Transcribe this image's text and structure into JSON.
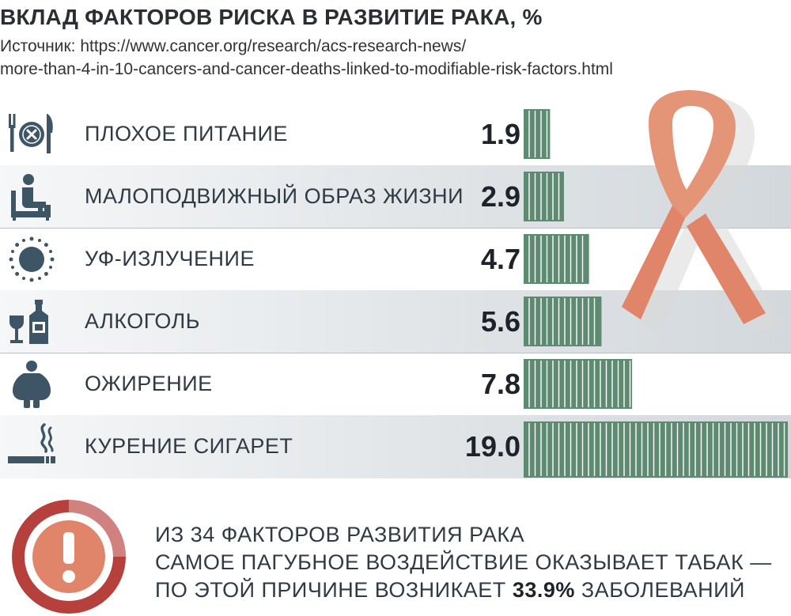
{
  "title": "ВКЛАД ФАКТОРОВ РИСКА В РАЗВИТИЕ РАКА, %",
  "source": {
    "line1": "Источник: https://www.cancer.org/research/acs-research-news/",
    "line2": "more-than-4-in-10-cancers-and-cancer-deaths-linked-to-modifiable-risk-factors.html"
  },
  "chart_data": {
    "type": "bar",
    "orientation": "horizontal",
    "categories": [
      "ПЛОХОЕ ПИТАНИЕ",
      "МАЛОПОДВИЖНЫЙ ОБРАЗ ЖИЗНИ",
      "УФ-ИЗЛУЧЕНИЕ",
      "АЛКОГОЛЬ",
      "ОЖИРЕНИЕ",
      "КУРЕНИЕ СИГАРЕТ"
    ],
    "values": [
      1.9,
      2.9,
      4.7,
      5.6,
      7.8,
      19.0
    ],
    "value_labels": [
      "1.9",
      "2.9",
      "4.7",
      "5.6",
      "7.8",
      "19.0"
    ],
    "icons": [
      "plate-icon",
      "armchair-person-icon",
      "sun-icon",
      "bottle-glass-icon",
      "obese-person-icon",
      "cigarette-icon"
    ],
    "bar_color": "#5e8a72",
    "grid": false
  },
  "note": {
    "line1": "ИЗ 34 ФАКТОРОВ РАЗВИТИЯ РАКА",
    "line2": "САМОЕ ПАГУБНОЕ ВОЗДЕЙСТВИЕ ОКАЗЫВАЕТ ТАБАК —",
    "line3_pre": "ПО ЭТОЙ ПРИЧИНЕ ВОЗНИКАЕТ ",
    "line3_bold": "33.9%",
    "line3_post": " ЗАБОЛЕВАНИЙ",
    "icon": "exclamation-icon"
  },
  "colors": {
    "accent_red": "#b6403b",
    "ribbon": "#e0856a",
    "icon_slate": "#3e5566",
    "bar": "#5e8a72"
  }
}
